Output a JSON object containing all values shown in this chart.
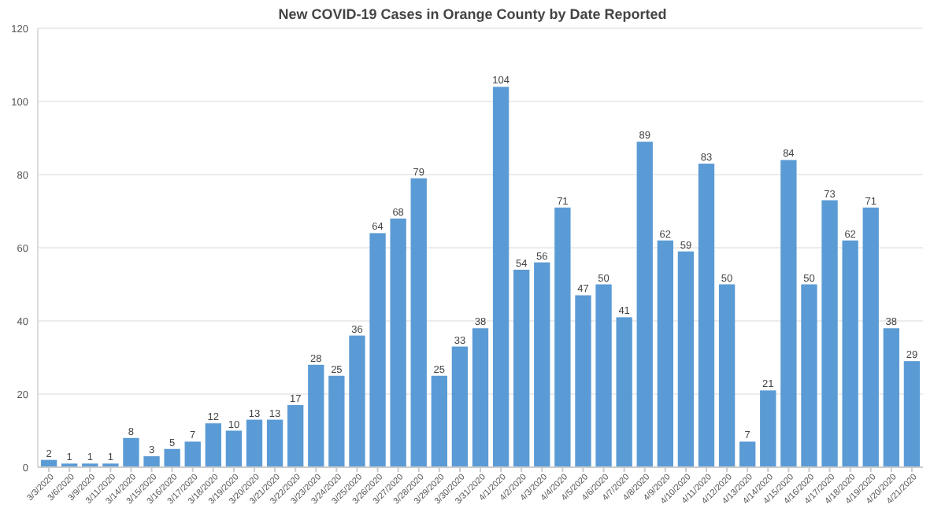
{
  "chart_data": {
    "type": "bar",
    "title": "New COVID-19 Cases in Orange County by Date Reported",
    "categories": [
      "3/3/2020",
      "3/6/2020",
      "3/9/2020",
      "3/11/2020",
      "3/14/2020",
      "3/15/2020",
      "3/16/2020",
      "3/17/2020",
      "3/18/2020",
      "3/19/2020",
      "3/20/2020",
      "3/21/2020",
      "3/22/2020",
      "3/23/2020",
      "3/24/2020",
      "3/25/2020",
      "3/26/2020",
      "3/27/2020",
      "3/28/2020",
      "3/29/2020",
      "3/30/2020",
      "3/31/2020",
      "4/1/2020",
      "4/2/2020",
      "4/3/2020",
      "4/4/2020",
      "4/5/2020",
      "4/6/2020",
      "4/7/2020",
      "4/8/2020",
      "4/9/2020",
      "4/10/2020",
      "4/11/2020",
      "4/12/2020",
      "4/13/2020",
      "4/14/2020",
      "4/15/2020",
      "4/16/2020",
      "4/17/2020",
      "4/18/2020",
      "4/19/2020",
      "4/20/2020",
      "4/21/2020"
    ],
    "values": [
      2,
      1,
      1,
      1,
      8,
      3,
      5,
      7,
      12,
      10,
      13,
      13,
      17,
      28,
      25,
      36,
      64,
      68,
      79,
      25,
      33,
      38,
      104,
      54,
      56,
      71,
      47,
      50,
      41,
      89,
      62,
      59,
      83,
      50,
      7,
      21,
      84,
      50,
      73,
      62,
      71,
      38,
      29
    ],
    "color": "#5b9bd5",
    "ylim": [
      0,
      120
    ],
    "yticks": [
      0,
      20,
      40,
      60,
      80,
      100,
      120
    ],
    "grid": "y",
    "data_labels": true
  }
}
